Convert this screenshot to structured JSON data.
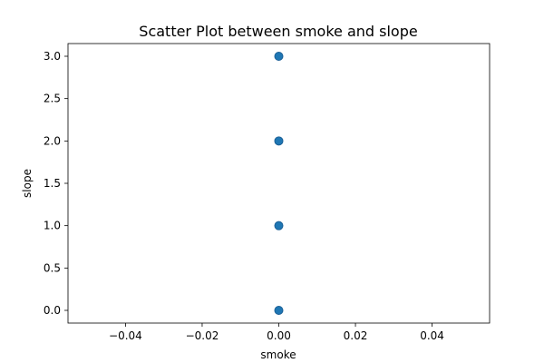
{
  "chart_data": {
    "type": "scatter",
    "title": "Scatter Plot between smoke and slope",
    "xlabel": "smoke",
    "ylabel": "slope",
    "xlim": [
      -0.055,
      0.055
    ],
    "ylim": [
      -0.15,
      3.15
    ],
    "x_ticks": [
      -0.04,
      -0.02,
      0.0,
      0.02,
      0.04
    ],
    "x_tick_labels": [
      "−0.04",
      "−0.02",
      "0.00",
      "0.02",
      "0.04"
    ],
    "y_ticks": [
      0.0,
      0.5,
      1.0,
      1.5,
      2.0,
      2.5,
      3.0
    ],
    "y_tick_labels": [
      "0.0",
      "0.5",
      "1.0",
      "1.5",
      "2.0",
      "2.5",
      "3.0"
    ],
    "grid": false,
    "marker_color": "#1f77b4",
    "points": [
      {
        "x": 0,
        "y": 0
      },
      {
        "x": 0,
        "y": 1
      },
      {
        "x": 0,
        "y": 2
      },
      {
        "x": 0,
        "y": 3
      }
    ]
  }
}
